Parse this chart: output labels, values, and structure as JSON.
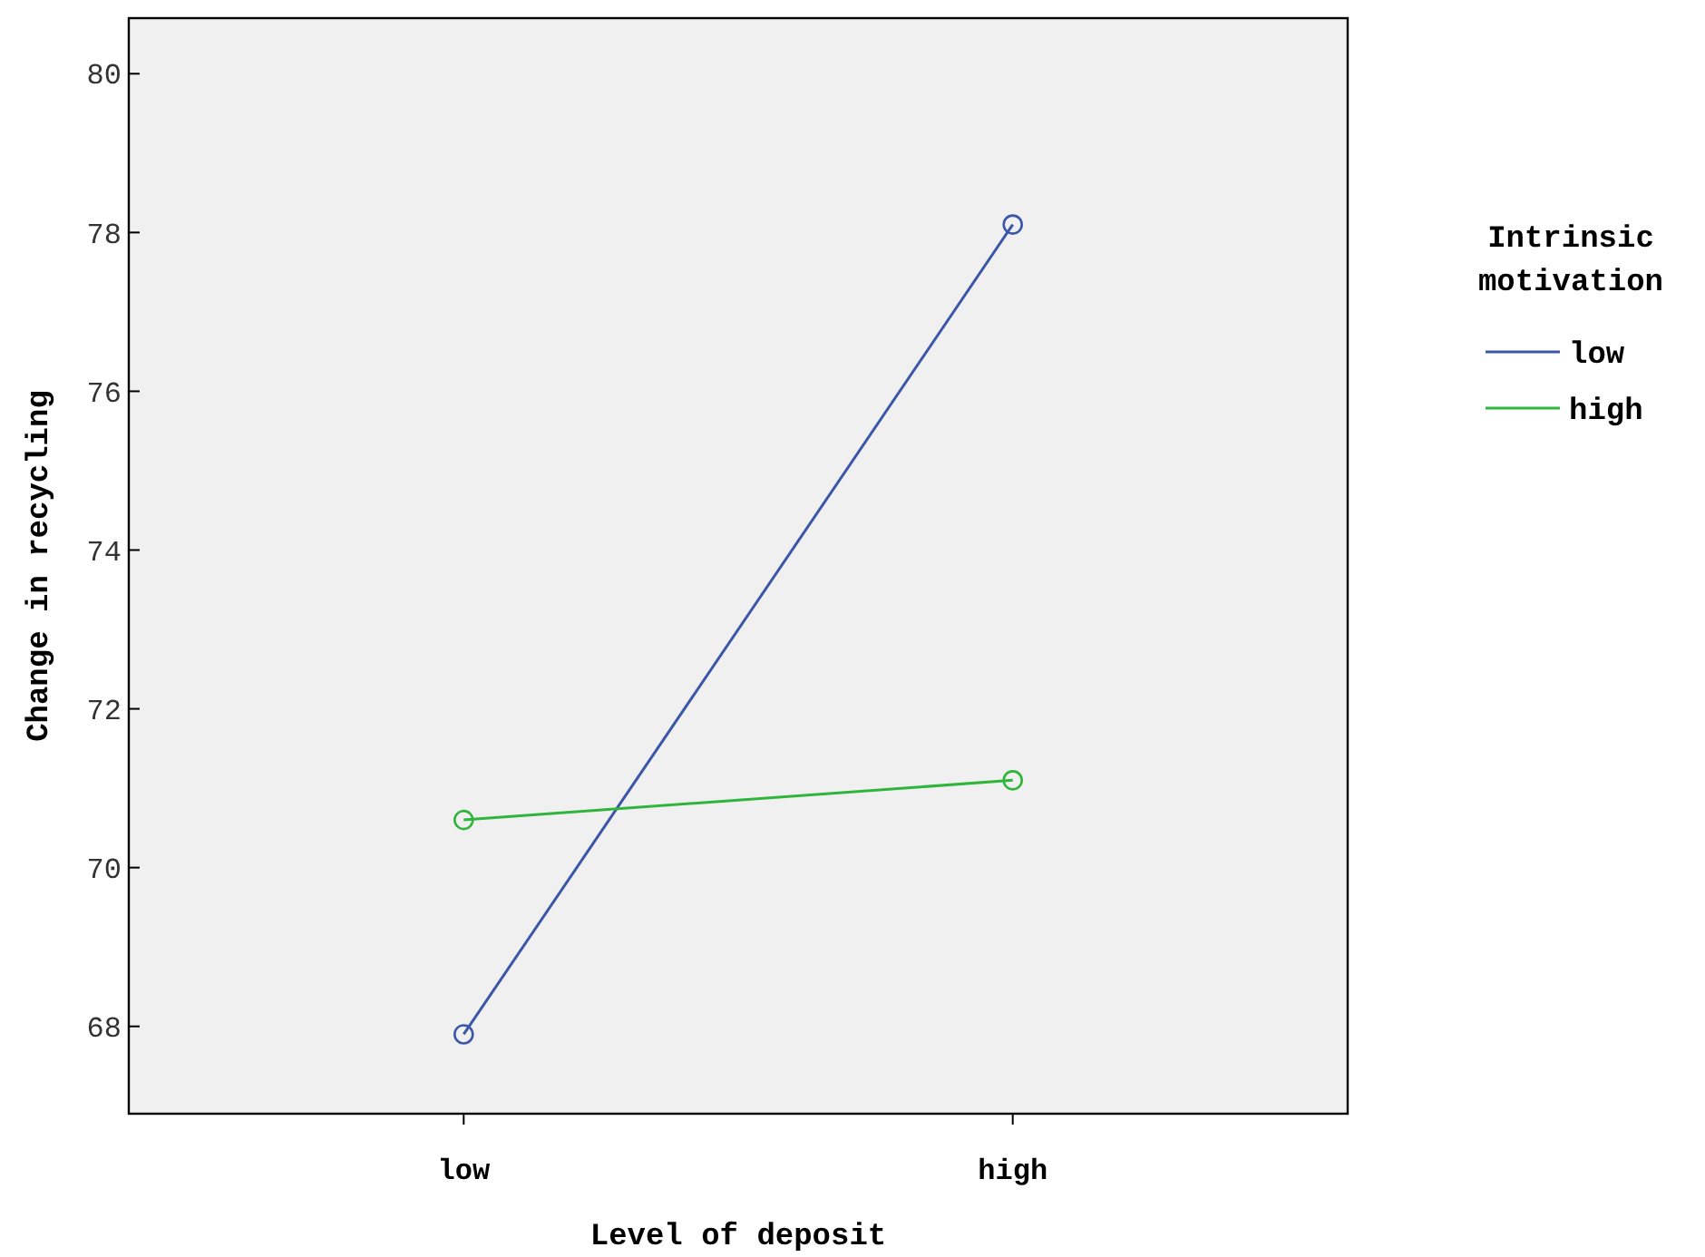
{
  "chart_data": {
    "type": "line",
    "xlabel": "Level of deposit",
    "ylabel": "Change in recycling",
    "legend_title": "Intrinsic motivation",
    "categories": [
      "low",
      "high"
    ],
    "series": [
      {
        "name": "low",
        "color": "#3c56a8",
        "values": [
          67.9,
          78.1
        ]
      },
      {
        "name": "high",
        "color": "#2fb53c",
        "values": [
          70.6,
          71.1
        ]
      }
    ],
    "ylim": [
      66.9,
      80.7
    ],
    "yticks": [
      68,
      70,
      72,
      74,
      76,
      78,
      80
    ],
    "grid": false,
    "legend": "right",
    "marker": "circle"
  }
}
